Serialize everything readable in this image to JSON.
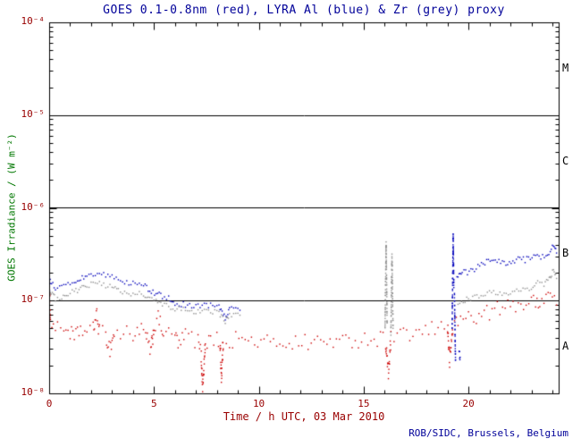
{
  "colors": {
    "title": "#000099",
    "tick_label": "#990000",
    "x_label": "#990000",
    "y_label": "#007700",
    "credit": "#000099",
    "frame": "#000000",
    "class_label": "#000000"
  },
  "chart_data": {
    "type": "scatter",
    "title": "GOES 0.1-0.8nm (red), LYRA Al (blue) & Zr (grey) proxy",
    "xlabel": "Time / h UTC, 03 Mar 2010",
    "ylabel": "GOES Irradiance / (W m⁻²)",
    "credit": "ROB/SIDC, Brussels, Belgium",
    "xlim": [
      0,
      24.3
    ],
    "ylog_range": [
      -8,
      -4
    ],
    "grid": false,
    "legend": "in-title",
    "x_ticks": [
      0,
      5,
      10,
      15,
      20
    ],
    "x_tick_labels": [
      "0",
      "5",
      "10",
      "15",
      "20"
    ],
    "x_minor_step": 1,
    "y_tick_exponents": [
      -4,
      -5,
      -6,
      -7,
      -8
    ],
    "y_tick_labels": [
      "10⁻⁴",
      "10⁻⁵",
      "10⁻⁶",
      "10⁻⁷",
      "10⁻⁸"
    ],
    "hlines": [
      1e-05,
      1e-06,
      1e-07
    ],
    "class_labels": [
      {
        "label": "M",
        "log_center": -4.5
      },
      {
        "label": "C",
        "log_center": -5.5
      },
      {
        "label": "B",
        "log_center": -6.5
      },
      {
        "label": "A",
        "log_center": -7.5
      }
    ],
    "series": [
      {
        "name": "GOES 0.1-0.8nm",
        "color": "#cc0000",
        "jitter_dex": 0.09,
        "dot_spacing_px": 3.4,
        "segments": [
          [
            [
              0.02,
              1.15e-07
            ],
            [
              0.06,
              6.5e-08
            ],
            [
              0.2,
              5.5e-08
            ],
            [
              0.4,
              4.8e-08
            ],
            [
              0.7,
              5.2e-08
            ],
            [
              1.0,
              4.6e-08
            ],
            [
              1.2,
              3.8e-08
            ],
            [
              1.5,
              5e-08
            ],
            [
              1.8,
              4.4e-08
            ],
            [
              2.1,
              4.8e-08
            ],
            [
              2.25,
              7.2e-08
            ],
            [
              2.4,
              4.6e-08
            ],
            [
              2.7,
              4.2e-08
            ],
            [
              2.9,
              3e-08
            ],
            [
              3.1,
              4.5e-08
            ],
            [
              3.4,
              4.2e-08
            ],
            [
              3.7,
              4.6e-08
            ],
            [
              4.0,
              4.3e-08
            ],
            [
              4.3,
              5e-08
            ],
            [
              4.6,
              4.2e-08
            ],
            [
              4.85,
              2.8e-08
            ],
            [
              5.0,
              5.2e-08
            ],
            [
              5.2,
              6.3e-08
            ],
            [
              5.45,
              4.6e-08
            ],
            [
              5.7,
              4.2e-08
            ],
            [
              6.0,
              4.4e-08
            ],
            [
              6.2,
              3.2e-08
            ],
            [
              6.5,
              4.3e-08
            ],
            [
              6.8,
              4e-08
            ],
            [
              7.1,
              3.6e-08
            ],
            [
              7.25,
              2.6e-08
            ],
            [
              7.32,
              1.1e-08
            ],
            [
              7.45,
              3.4e-08
            ],
            [
              7.7,
              4e-08
            ],
            [
              8.0,
              3.9e-08
            ],
            [
              8.15,
              3.4e-08
            ],
            [
              8.22,
              1.5e-08
            ],
            [
              8.3,
              3.6e-08
            ],
            [
              8.6,
              3.6e-08
            ],
            [
              8.9,
              4e-08
            ],
            [
              9.2,
              3.8e-08
            ],
            [
              9.5,
              3.5e-08
            ],
            [
              9.8,
              3.7e-08
            ],
            [
              10.1,
              3.5e-08
            ],
            [
              10.4,
              3.6e-08
            ],
            [
              10.7,
              3.4e-08
            ],
            [
              11.0,
              3.7e-08
            ],
            [
              11.3,
              3.5e-08
            ],
            [
              11.6,
              3.6e-08
            ],
            [
              11.9,
              3.4e-08
            ],
            [
              12.2,
              3.6e-08
            ],
            [
              12.5,
              3.5e-08
            ],
            [
              12.8,
              3.7e-08
            ],
            [
              13.1,
              3.5e-08
            ],
            [
              13.4,
              3.8e-08
            ],
            [
              13.7,
              3.6e-08
            ],
            [
              14.0,
              3.5e-08
            ],
            [
              14.3,
              3.7e-08
            ],
            [
              14.6,
              3.9e-08
            ],
            [
              14.9,
              3.7e-08
            ],
            [
              15.2,
              4e-08
            ],
            [
              15.5,
              3.8e-08
            ],
            [
              15.8,
              4e-08
            ],
            [
              16.05,
              3.6e-08
            ],
            [
              16.18,
              1.6e-08
            ],
            [
              16.3,
              3.8e-08
            ],
            [
              16.6,
              4e-08
            ],
            [
              16.9,
              4.1e-08
            ],
            [
              17.2,
              4.3e-08
            ],
            [
              17.5,
              4.5e-08
            ],
            [
              17.8,
              4.4e-08
            ],
            [
              18.1,
              4.7e-08
            ],
            [
              18.4,
              5e-08
            ],
            [
              18.7,
              5.2e-08
            ],
            [
              19.0,
              5.5e-08
            ],
            [
              19.1,
              2.2e-08
            ],
            [
              19.25,
              5.2e-08
            ],
            [
              19.5,
              6e-08
            ],
            [
              19.75,
              6.3e-08
            ],
            [
              20.0,
              6.8e-08
            ],
            [
              20.25,
              7e-08
            ],
            [
              20.5,
              6.6e-08
            ],
            [
              20.75,
              7.2e-08
            ],
            [
              21.0,
              7.6e-08
            ],
            [
              21.25,
              8e-08
            ],
            [
              21.5,
              8.3e-08
            ],
            [
              21.75,
              8e-08
            ],
            [
              22.0,
              8.8e-08
            ],
            [
              22.25,
              9.2e-08
            ],
            [
              22.5,
              9.6e-08
            ],
            [
              22.75,
              9.2e-08
            ],
            [
              23.0,
              1e-07
            ],
            [
              23.2,
              8.8e-08
            ],
            [
              23.4,
              1.05e-07
            ],
            [
              23.6,
              1.1e-07
            ],
            [
              23.8,
              1.2e-07
            ],
            [
              24.0,
              1.12e-07
            ],
            [
              24.2,
              1e-07
            ]
          ]
        ]
      },
      {
        "name": "LYRA Al",
        "color": "#0000bb",
        "jitter_dex": 0.03,
        "dot_spacing_px": 2.2,
        "segments": [
          [
            [
              0.0,
              1.25e-07
            ],
            [
              0.05,
              1.6e-07
            ],
            [
              0.3,
              1.35e-07
            ],
            [
              0.6,
              1.4e-07
            ],
            [
              0.9,
              1.5e-07
            ],
            [
              1.2,
              1.55e-07
            ],
            [
              1.5,
              1.7e-07
            ],
            [
              1.8,
              1.85e-07
            ],
            [
              2.1,
              1.95e-07
            ],
            [
              2.4,
              2e-07
            ],
            [
              2.7,
              1.9e-07
            ],
            [
              3.0,
              1.8e-07
            ],
            [
              3.3,
              1.7e-07
            ],
            [
              3.6,
              1.6e-07
            ],
            [
              3.9,
              1.5e-07
            ],
            [
              4.2,
              1.55e-07
            ],
            [
              4.5,
              1.45e-07
            ],
            [
              4.8,
              1.3e-07
            ],
            [
              5.1,
              1.2e-07
            ],
            [
              5.4,
              1.1e-07
            ],
            [
              5.7,
              1.05e-07
            ],
            [
              6.0,
              9.5e-08
            ],
            [
              6.3,
              9.2e-08
            ],
            [
              6.6,
              9e-08
            ],
            [
              6.9,
              8.6e-08
            ],
            [
              7.2,
              8.8e-08
            ],
            [
              7.5,
              9e-08
            ],
            [
              7.8,
              8.8e-08
            ],
            [
              8.1,
              8.5e-08
            ],
            [
              8.4,
              6.5e-08
            ],
            [
              8.6,
              8e-08
            ],
            [
              8.9,
              8.5e-08
            ],
            [
              9.1,
              8e-08
            ]
          ],
          [
            [
              19.22,
              5e-08
            ],
            [
              19.27,
              5.3e-07
            ],
            [
              19.3,
              1.4e-07
            ]
          ],
          [
            [
              19.33,
              1.2e-07
            ],
            [
              19.38,
              2.2e-08
            ]
          ],
          [
            [
              19.55,
              3e-08
            ],
            [
              19.6,
              2.3e-08
            ]
          ],
          [
            [
              19.45,
              1.7e-07
            ],
            [
              19.7,
              2.1e-07
            ],
            [
              19.95,
              2e-07
            ],
            [
              20.2,
              2.15e-07
            ],
            [
              20.45,
              2.3e-07
            ],
            [
              20.7,
              2.5e-07
            ],
            [
              20.95,
              2.7e-07
            ],
            [
              21.2,
              2.8e-07
            ],
            [
              21.45,
              2.65e-07
            ],
            [
              21.7,
              2.5e-07
            ],
            [
              21.95,
              2.55e-07
            ],
            [
              22.2,
              2.7e-07
            ],
            [
              22.45,
              2.8e-07
            ],
            [
              22.7,
              2.75e-07
            ],
            [
              22.95,
              2.85e-07
            ],
            [
              23.2,
              3.1e-07
            ],
            [
              23.45,
              3e-07
            ],
            [
              23.7,
              3.1e-07
            ],
            [
              23.9,
              3.5e-07
            ],
            [
              24.05,
              4e-07
            ],
            [
              24.2,
              3.3e-07
            ]
          ]
        ]
      },
      {
        "name": "LYRA Zr",
        "color": "#909090",
        "jitter_dex": 0.03,
        "dot_spacing_px": 2.2,
        "segments": [
          [
            [
              0.0,
              1e-07
            ],
            [
              0.05,
              1.3e-07
            ],
            [
              0.3,
              1.05e-07
            ],
            [
              0.6,
              1.1e-07
            ],
            [
              0.9,
              1.2e-07
            ],
            [
              1.2,
              1.25e-07
            ],
            [
              1.5,
              1.35e-07
            ],
            [
              1.8,
              1.45e-07
            ],
            [
              2.1,
              1.5e-07
            ],
            [
              2.4,
              1.55e-07
            ],
            [
              2.7,
              1.45e-07
            ],
            [
              3.0,
              1.4e-07
            ],
            [
              3.3,
              1.3e-07
            ],
            [
              3.6,
              1.25e-07
            ],
            [
              3.9,
              1.2e-07
            ],
            [
              4.2,
              1.22e-07
            ],
            [
              4.5,
              1.15e-07
            ],
            [
              4.8,
              1.05e-07
            ],
            [
              5.1,
              9.8e-08
            ],
            [
              5.4,
              9e-08
            ],
            [
              5.7,
              8.6e-08
            ],
            [
              6.0,
              8.2e-08
            ],
            [
              6.3,
              8e-08
            ],
            [
              6.6,
              7.8e-08
            ],
            [
              6.9,
              7.4e-08
            ],
            [
              7.2,
              7.6e-08
            ],
            [
              7.5,
              7.8e-08
            ],
            [
              7.8,
              7.6e-08
            ],
            [
              8.1,
              7.3e-08
            ],
            [
              8.4,
              6e-08
            ],
            [
              8.6,
              7e-08
            ],
            [
              8.9,
              7.3e-08
            ],
            [
              9.1,
              7e-08
            ]
          ],
          [
            [
              16.02,
              5e-08
            ],
            [
              16.07,
              4.3e-07
            ],
            [
              16.12,
              5.5e-08
            ]
          ],
          [
            [
              16.3,
              4.5e-08
            ],
            [
              16.35,
              3e-07
            ],
            [
              16.4,
              5e-08
            ]
          ],
          [
            [
              19.5,
              9e-08
            ],
            [
              19.75,
              1e-07
            ],
            [
              20.0,
              1.05e-07
            ],
            [
              20.3,
              1.1e-07
            ],
            [
              20.6,
              1.15e-07
            ],
            [
              20.9,
              1.2e-07
            ],
            [
              21.2,
              1.25e-07
            ],
            [
              21.5,
              1.2e-07
            ],
            [
              21.8,
              1.18e-07
            ],
            [
              22.1,
              1.22e-07
            ],
            [
              22.4,
              1.3e-07
            ],
            [
              22.7,
              1.32e-07
            ],
            [
              23.0,
              1.4e-07
            ],
            [
              23.3,
              1.55e-07
            ],
            [
              23.6,
              1.5e-07
            ],
            [
              23.85,
              1.7e-07
            ],
            [
              24.05,
              2.1e-07
            ],
            [
              24.2,
              1.75e-07
            ]
          ]
        ]
      }
    ]
  }
}
